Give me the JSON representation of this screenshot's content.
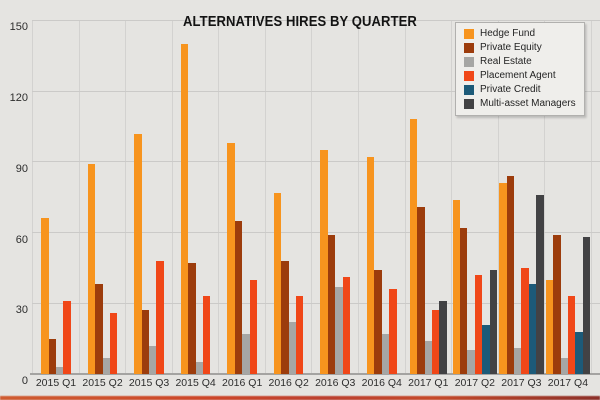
{
  "chart_data": {
    "type": "bar",
    "title": "ALTERNATIVES HIRES BY QUARTER",
    "categories": [
      "2015 Q1",
      "2015 Q2",
      "2015 Q3",
      "2015 Q4",
      "2016 Q1",
      "2016 Q2",
      "2016 Q3",
      "2016 Q4",
      "2017 Q1",
      "2017 Q2",
      "2017 Q3",
      "2017 Q4"
    ],
    "series": [
      {
        "name": "Hedge Fund",
        "color": "#f7941e",
        "values": [
          66,
          89,
          102,
          140,
          98,
          77,
          95,
          92,
          108,
          74,
          81,
          40
        ]
      },
      {
        "name": "Private Equity",
        "color": "#9c3c0c",
        "values": [
          15,
          38,
          27,
          47,
          65,
          48,
          59,
          44,
          71,
          62,
          84,
          59
        ]
      },
      {
        "name": "Real Estate",
        "color": "#a6a6a4",
        "values": [
          3,
          7,
          12,
          5,
          17,
          22,
          37,
          17,
          14,
          10,
          11,
          7
        ]
      },
      {
        "name": "Placement Agent",
        "color": "#f04718",
        "values": [
          31,
          26,
          48,
          33,
          40,
          33,
          41,
          36,
          27,
          42,
          45,
          33
        ]
      },
      {
        "name": "Private Credit",
        "color": "#1c5a78",
        "values": [
          null,
          null,
          null,
          null,
          null,
          null,
          null,
          null,
          null,
          21,
          38,
          18
        ]
      },
      {
        "name": "Multi-asset Managers",
        "color": "#424244",
        "values": [
          null,
          null,
          null,
          null,
          null,
          null,
          null,
          null,
          31,
          44,
          76,
          58
        ]
      }
    ],
    "y_ticks": [
      0,
      30,
      60,
      90,
      120,
      150
    ],
    "ylim": [
      0,
      150
    ],
    "xlabel": "",
    "ylabel": "",
    "grid": true,
    "legend_position": "top-right",
    "background": "#e5e4e1",
    "gridline_color": "#cbcac8",
    "text_color": "#2d2d2d"
  }
}
